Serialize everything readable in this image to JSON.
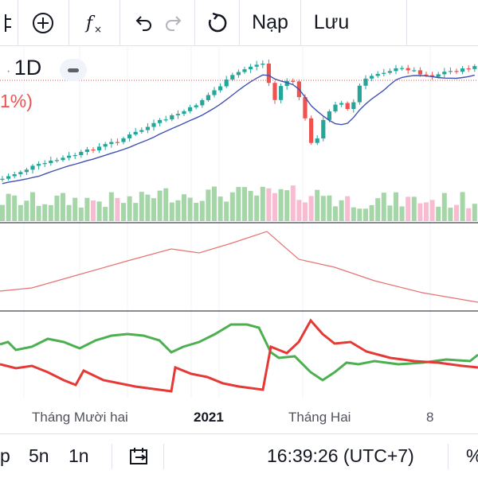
{
  "toolbar": {
    "items": [
      {
        "name": "chart-type-icon",
        "glyph": ""
      },
      {
        "name": "add-indicator-icon",
        "glyph": "⊕"
      },
      {
        "name": "indicators-fx-icon",
        "glyph": "fx"
      },
      {
        "name": "undo-icon",
        "glyph": "↶"
      },
      {
        "name": "redo-icon",
        "glyph": "↷"
      },
      {
        "name": "reset-icon",
        "glyph": "↺"
      }
    ],
    "load_label": "Nạp",
    "save_label": "Lưu"
  },
  "legend": {
    "interval": "1D",
    "change_pct": "1%)"
  },
  "time_axis": {
    "labels": [
      "Tháng Mười hai",
      "2021",
      "Tháng Hai",
      "8"
    ]
  },
  "bottom_bar": {
    "ranges": [
      "p",
      "5n",
      "1n"
    ],
    "goto_icon": "calendar-goto-icon",
    "clock": "16:39:26 (UTC+7)",
    "percent_label": "%"
  },
  "colors": {
    "up": "#26a69a",
    "down": "#ef5350",
    "ma_line": "#3f51b5",
    "volume_up": "#a5d6a7",
    "volume_down": "#f8bbd0",
    "indicator_line": "#e57373",
    "osc_green": "#4caf50",
    "osc_red": "#e53935"
  }
}
